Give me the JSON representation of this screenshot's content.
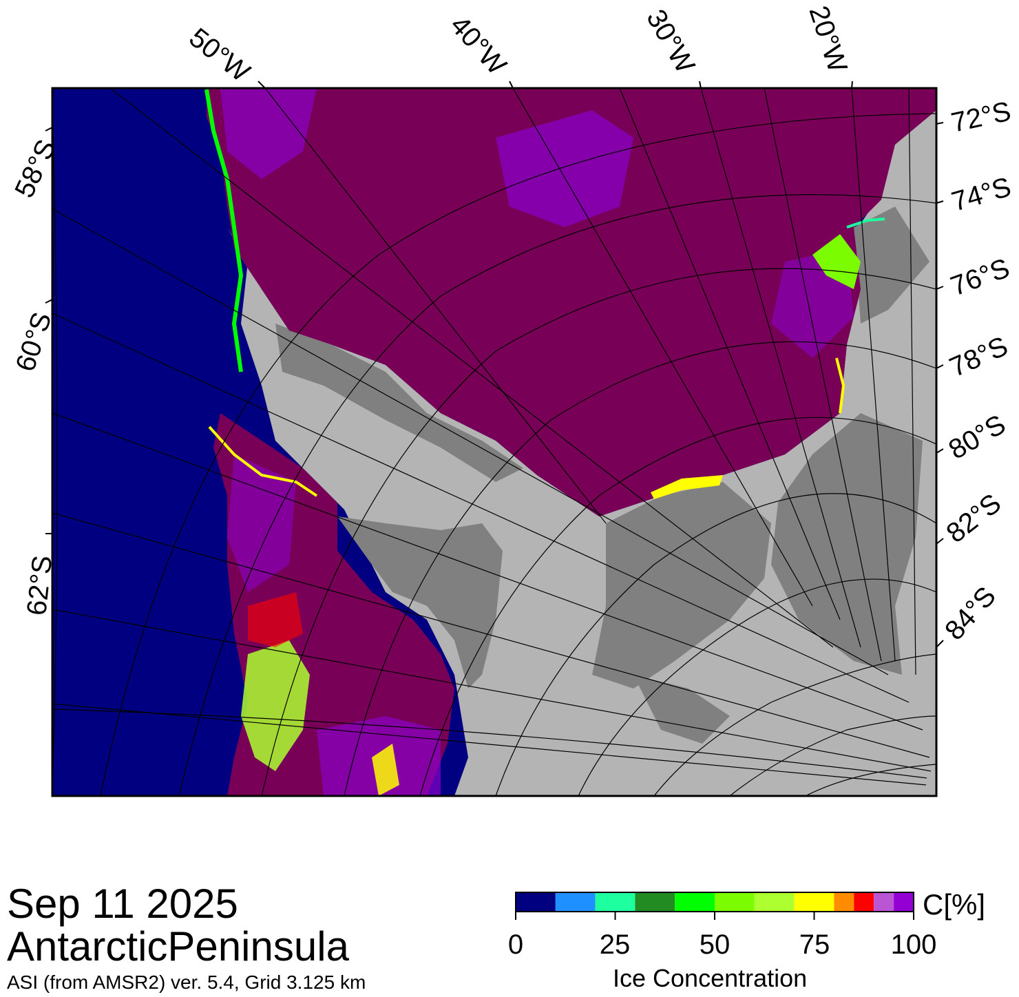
{
  "map": {
    "longitude_labels": [
      "50°W",
      "40°W",
      "30°W",
      "20°W"
    ],
    "latitude_labels_left": [
      "58°S",
      "60°S",
      "62°S"
    ],
    "latitude_labels_right": [
      "72°S",
      "74°S",
      "76°S",
      "78°S",
      "80°S",
      "82°S",
      "84°S"
    ],
    "colors": {
      "open_water": "#000080",
      "land_ice_shelf": "#b4b4b4",
      "land_dark": "#808080",
      "ice_100": "#780056",
      "ice_95": "#8a00c8"
    }
  },
  "footer": {
    "date": "Sep 11 2025",
    "region": "AntarcticPeninsula",
    "product_info": "ASI (from AMSR2) ver. 5.4,  Grid 3.125 km"
  },
  "colorbar": {
    "title": "Ice Concentration",
    "unit": "C[%]",
    "ticks": [
      "0",
      "25",
      "50",
      "75",
      "100"
    ],
    "bins": [
      {
        "from": 0,
        "to": 10,
        "color": "#000080"
      },
      {
        "from": 10,
        "to": 20,
        "color": "#1e90ff"
      },
      {
        "from": 20,
        "to": 30,
        "color": "#1effa0"
      },
      {
        "from": 30,
        "to": 40,
        "color": "#228b22"
      },
      {
        "from": 40,
        "to": 50,
        "color": "#00ff00"
      },
      {
        "from": 50,
        "to": 60,
        "color": "#7cfc00"
      },
      {
        "from": 60,
        "to": 70,
        "color": "#adff2f"
      },
      {
        "from": 70,
        "to": 80,
        "color": "#ffff00"
      },
      {
        "from": 80,
        "to": 85,
        "color": "#ff8c00"
      },
      {
        "from": 85,
        "to": 90,
        "color": "#ff0000"
      },
      {
        "from": 90,
        "to": 95,
        "color": "#ba55d3"
      },
      {
        "from": 95,
        "to": 100,
        "color": "#9400d3"
      }
    ]
  }
}
